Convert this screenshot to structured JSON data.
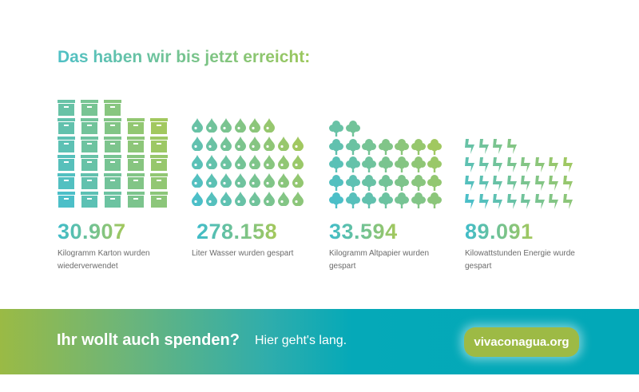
{
  "title": "Das haben wir bis jetzt erreicht:",
  "stats": [
    {
      "icon": "box-icon",
      "value": "30.907",
      "label": "Kilogramm Karton wurden wiederverwendet",
      "icon_rows": [
        3,
        5,
        5,
        5,
        5,
        5
      ]
    },
    {
      "icon": "water-drop-icon",
      "value": "278.158",
      "label": "Liter Wasser wurden gespart",
      "icon_rows": [
        6,
        8,
        8,
        8,
        8
      ]
    },
    {
      "icon": "tree-icon",
      "value": "33.594",
      "label": "Kilogramm Altpapier wurden gespart",
      "icon_rows": [
        2,
        7,
        7,
        7,
        7
      ]
    },
    {
      "icon": "lightning-icon",
      "value": "89.091",
      "label": "Kilowattstunden Energie wurde gespart",
      "icon_rows": [
        4,
        8,
        8,
        8
      ]
    }
  ],
  "banner": {
    "headline": "Ihr wollt auch spenden?",
    "subline": "Hier geht's lang.",
    "button_label": "vivaconagua.org"
  },
  "colors": {
    "teal": "#4cbfc8",
    "green": "#a8c958",
    "button": "#9dba45"
  }
}
